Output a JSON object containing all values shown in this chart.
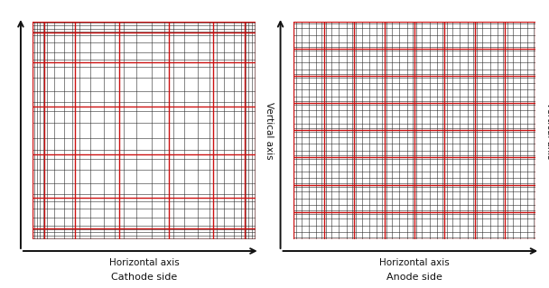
{
  "fig_width": 6.08,
  "fig_height": 3.19,
  "background_color": "#ffffff",
  "grid_color_black": "#2a2a2a",
  "grid_color_gray": "#888888",
  "grid_color_red": "#cc1111",
  "axis_color": "#111111",
  "label_color": "#111111",
  "cathode_title": "Cathode side",
  "anode_title": "Anode side",
  "xlabel": "Horizontal axis",
  "ylabel": "Vertical axis",
  "cathode_n_red_segs": 8,
  "cathode_fine_per_seg": 4,
  "anode_n_red_segs": 9,
  "anode_fine_per_seg": 5
}
